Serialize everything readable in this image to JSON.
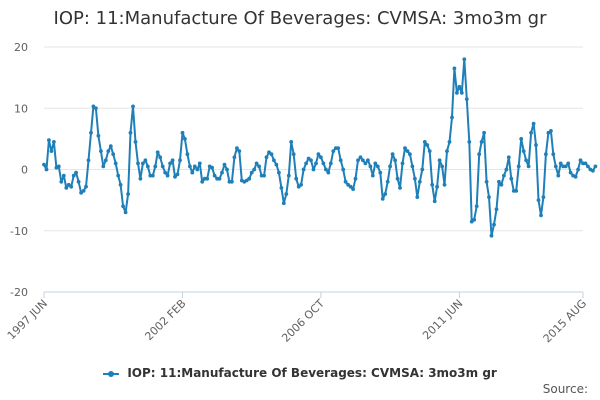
{
  "chart_data": {
    "type": "line",
    "title": "IOP: 11:Manufacture Of Beverages: CVMSA: 3mo3m gr",
    "xlabel": "",
    "ylabel": "",
    "ylim": [
      -20,
      20
    ],
    "yticks": [
      20,
      10,
      0,
      -10,
      -20
    ],
    "x_range": [
      "1997-06",
      "2015-08"
    ],
    "x_ticks": [
      {
        "label": "1997 JUN",
        "date": "1997-06"
      },
      {
        "label": "2002 FEB",
        "date": "2002-02"
      },
      {
        "label": "2006 OCT",
        "date": "2006-10"
      },
      {
        "label": "2011 JUN",
        "date": "2011-06"
      },
      {
        "label": "2015 AUG",
        "date": "2015-08"
      }
    ],
    "series": [
      {
        "name": "IOP: 11:Manufacture Of Beverages: CVMSA: 3mo3m gr",
        "color": "#1f7fb8",
        "start": "1997-06",
        "frequency": "monthly",
        "values": [
          0.8,
          0.0,
          4.8,
          3.0,
          4.5,
          0.3,
          0.5,
          -2.0,
          -1.0,
          -3.0,
          -2.5,
          -2.8,
          -1.0,
          -0.5,
          -2.0,
          -3.8,
          -3.5,
          -2.8,
          1.5,
          6.0,
          10.3,
          10.0,
          5.5,
          3.0,
          0.5,
          1.5,
          3.0,
          3.8,
          2.5,
          1.0,
          -1.0,
          -2.5,
          -6.0,
          -7.0,
          -4.0,
          6.0,
          10.3,
          4.5,
          1.0,
          -1.5,
          1.0,
          1.5,
          0.5,
          -1.0,
          -1.0,
          0.5,
          2.8,
          2.0,
          0.5,
          -0.5,
          -1.0,
          1.0,
          1.5,
          -1.2,
          -0.8,
          1.5,
          6.0,
          5.0,
          2.5,
          0.5,
          -0.5,
          0.5,
          0.0,
          1.0,
          -2.0,
          -1.5,
          -1.5,
          0.5,
          0.3,
          -1.0,
          -1.5,
          -1.5,
          -0.5,
          0.8,
          0.0,
          -2.0,
          -2.0,
          2.0,
          3.5,
          3.0,
          -1.8,
          -2.0,
          -1.8,
          -1.5,
          -0.5,
          0.0,
          1.0,
          0.5,
          -1.0,
          -1.0,
          2.0,
          2.8,
          2.5,
          1.5,
          0.8,
          -0.5,
          -3.0,
          -5.5,
          -4.0,
          -1.0,
          4.5,
          2.5,
          -1.5,
          -2.8,
          -2.5,
          0.0,
          1.0,
          1.8,
          1.5,
          0.0,
          1.0,
          2.5,
          2.0,
          1.0,
          0.0,
          -0.5,
          1.0,
          3.0,
          3.5,
          3.5,
          1.5,
          0.0,
          -2.0,
          -2.5,
          -2.8,
          -3.2,
          -1.5,
          1.5,
          2.0,
          1.5,
          1.0,
          1.5,
          0.5,
          -1.0,
          1.0,
          0.5,
          -0.5,
          -4.8,
          -4.0,
          -2.0,
          0.5,
          2.5,
          1.5,
          -1.5,
          -3.0,
          1.0,
          3.5,
          3.0,
          2.5,
          0.5,
          -1.5,
          -4.5,
          -2.0,
          0.0,
          4.5,
          4.0,
          3.0,
          -2.5,
          -5.2,
          -2.8,
          1.5,
          0.5,
          -2.5,
          3.0,
          4.5,
          8.5,
          16.5,
          12.5,
          13.5,
          12.5,
          18.0,
          11.5,
          4.5,
          -8.5,
          -8.2,
          -6.0,
          2.5,
          4.5,
          6.0,
          -2.0,
          -4.5,
          -10.8,
          -9.0,
          -6.5,
          -2.0,
          -2.5,
          -1.0,
          0.0,
          2.0,
          -1.5,
          -3.5,
          -3.5,
          0.5,
          5.0,
          3.0,
          1.5,
          0.5,
          6.0,
          7.5,
          4.0,
          -5.0,
          -7.5,
          -4.5,
          2.5,
          6.0,
          6.3,
          2.5,
          0.5,
          -1.0,
          1.0,
          0.5,
          0.5,
          1.0,
          -0.5,
          -1.0,
          -1.2,
          0.0,
          1.5,
          1.0,
          1.0,
          0.5,
          0.0,
          -0.2,
          0.5
        ]
      }
    ]
  },
  "legend": {
    "label": "IOP: 11:Manufacture Of Beverages: CVMSA: 3mo3m gr"
  },
  "source": {
    "label": "Source:"
  }
}
